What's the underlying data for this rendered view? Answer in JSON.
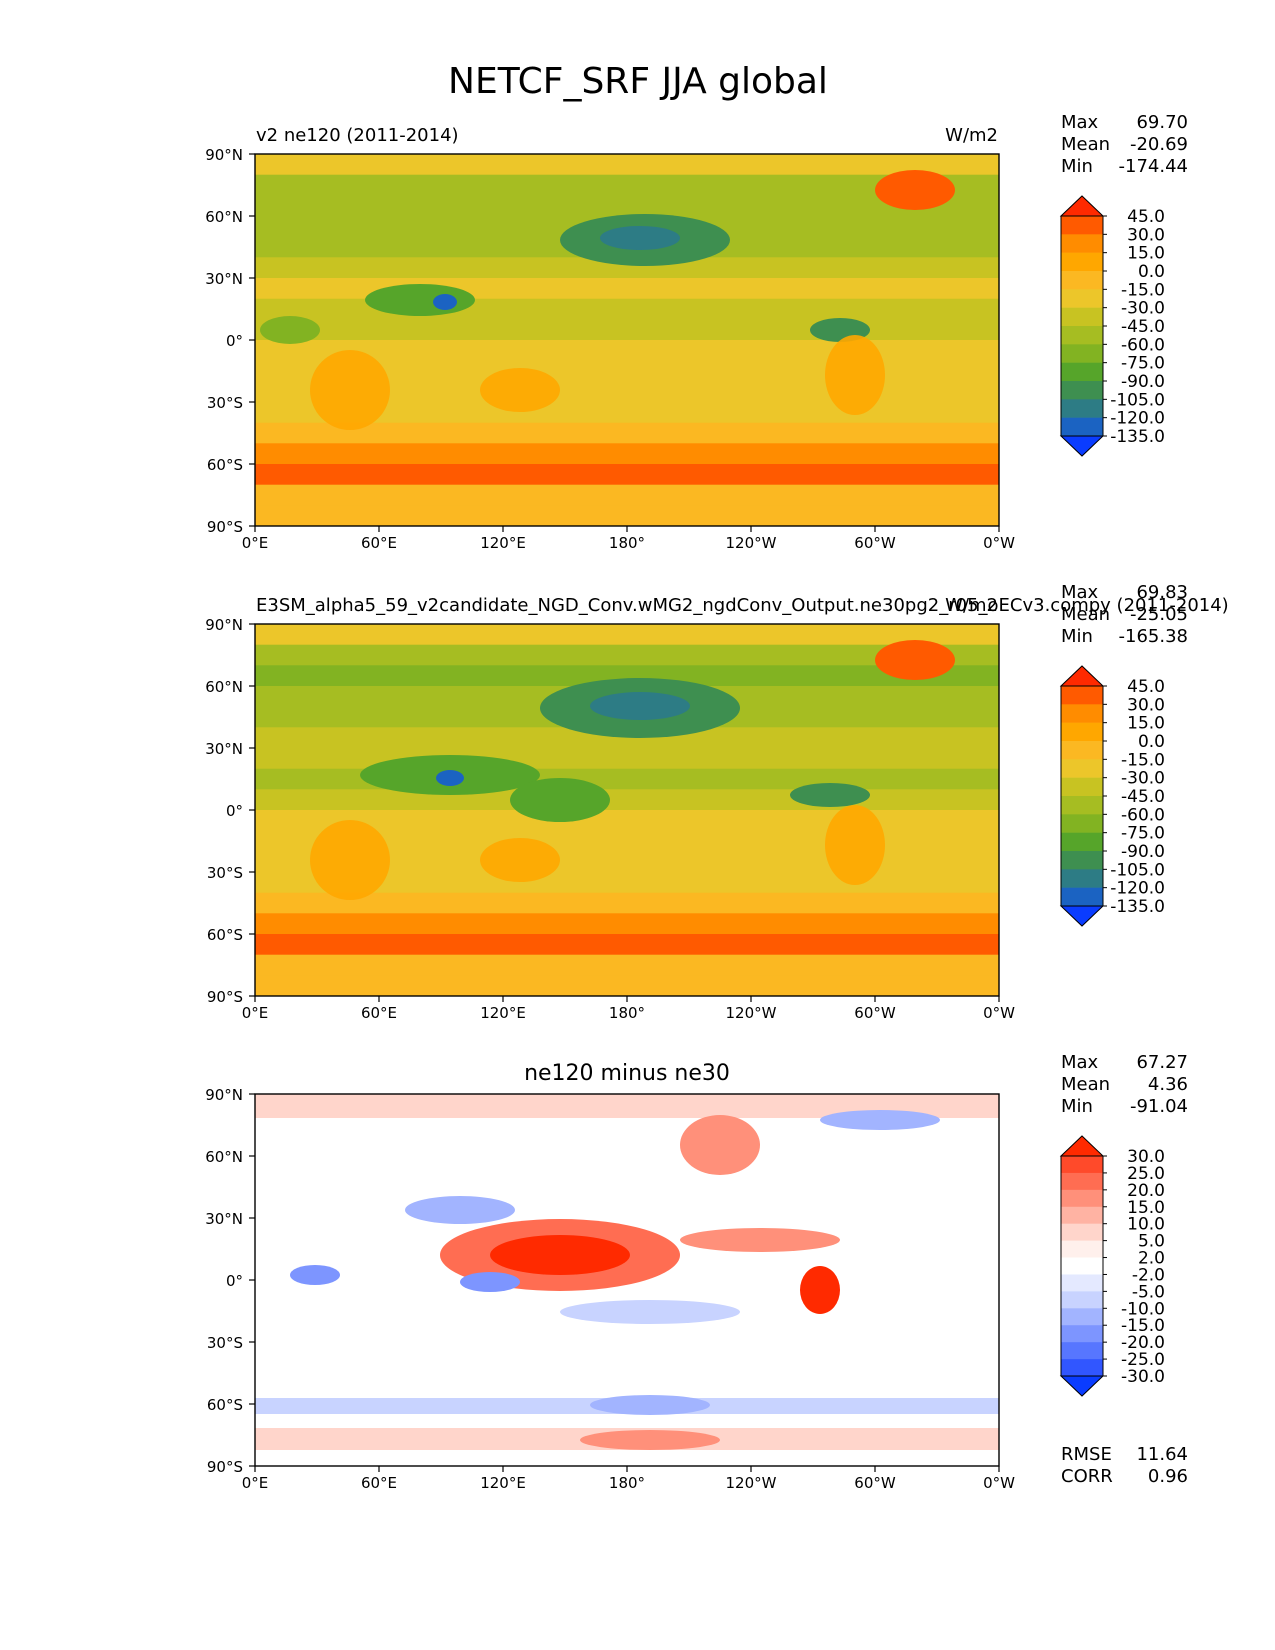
{
  "figure_title": "NETCF_SRF JJA global",
  "panels": [
    {
      "left_label": "v2 ne120 (2011-2014)",
      "right_label": "W/m2",
      "center_label": "",
      "stats": {
        "max_label": "Max",
        "max": "69.70",
        "mean_label": "Mean",
        "mean": "-20.69",
        "min_label": "Min",
        "min": "-174.44"
      },
      "colorbar_levels": [
        "45.0",
        "30.0",
        "15.0",
        "0.0",
        "-15.0",
        "-30.0",
        "-45.0",
        "-60.0",
        "-75.0",
        "-90.0",
        "-105.0",
        "-120.0",
        "-135.0"
      ],
      "colorbar_colors": [
        "#ff2a00",
        "#ff5a00",
        "#ff8c00",
        "#ffa700",
        "#fbb822",
        "#ecc62a",
        "#c8c322",
        "#a6bd22",
        "#82b322",
        "#56a52a",
        "#3e8f50",
        "#2d7c85",
        "#1b63c2",
        "#0a3cff"
      ]
    },
    {
      "left_label": "E3SM_alpha5_59_v2candidate_NGD_Conv.wMG2_ngdConv_Output.ne30pg2_r05_oECv3.compy (2011-2014)",
      "right_label": "W/m2",
      "center_label": "",
      "stats": {
        "max_label": "Max",
        "max": "69.83",
        "mean_label": "Mean",
        "mean": "-25.05",
        "min_label": "Min",
        "min": "-165.38"
      },
      "colorbar_levels": [
        "45.0",
        "30.0",
        "15.0",
        "0.0",
        "-15.0",
        "-30.0",
        "-45.0",
        "-60.0",
        "-75.0",
        "-90.0",
        "-105.0",
        "-120.0",
        "-135.0"
      ],
      "colorbar_colors": [
        "#ff2a00",
        "#ff5a00",
        "#ff8c00",
        "#ffa700",
        "#fbb822",
        "#ecc62a",
        "#c8c322",
        "#a6bd22",
        "#82b322",
        "#56a52a",
        "#3e8f50",
        "#2d7c85",
        "#1b63c2",
        "#0a3cff"
      ]
    },
    {
      "left_label": "",
      "right_label": "",
      "center_label": "ne120 minus ne30",
      "stats": {
        "max_label": "Max",
        "max": "67.27",
        "mean_label": "Mean",
        "mean": "4.36",
        "min_label": "Min",
        "min": "-91.04"
      },
      "colorbar_levels": [
        "30.0",
        "25.0",
        "20.0",
        "15.0",
        "10.0",
        "5.0",
        "2.0",
        "-2.0",
        "-5.0",
        "-10.0",
        "-15.0",
        "-20.0",
        "-25.0",
        "-30.0"
      ],
      "colorbar_colors": [
        "#ff2a00",
        "#ff4a2a",
        "#ff6d52",
        "#ff907a",
        "#ffb3a3",
        "#ffd5cb",
        "#fff0ec",
        "#ffffff",
        "#e4e9ff",
        "#c8d3ff",
        "#a2b4ff",
        "#7d95ff",
        "#5776ff",
        "#3156ff",
        "#0a3cff"
      ],
      "rmse_label": "RMSE",
      "rmse": "11.64",
      "corr_label": "CORR",
      "corr": "0.96"
    }
  ],
  "chart_data": [
    {
      "type": "heatmap",
      "title": "v2 ne120 (2011-2014)",
      "units": "W/m2",
      "xticks": [
        "0°E",
        "60°E",
        "120°E",
        "180°",
        "120°W",
        "60°W",
        "0°W"
      ],
      "yticks": [
        "90°N",
        "60°N",
        "30°N",
        "0°",
        "30°S",
        "60°S",
        "90°S"
      ],
      "xlim": [
        0,
        360
      ],
      "ylim": [
        -90,
        90
      ],
      "max": 69.7,
      "mean": -20.69,
      "min": -174.44,
      "zonal_profile": {
        "lat": [
          85,
          75,
          65,
          55,
          45,
          35,
          25,
          15,
          5,
          -5,
          -15,
          -25,
          -35,
          -45,
          -55,
          -65,
          -75,
          -85
        ],
        "values": [
          -28,
          -50,
          -58,
          -48,
          -48,
          -33,
          -30,
          -42,
          -35,
          -24,
          -25,
          -24,
          -18,
          -5,
          20,
          40,
          -8,
          -6
        ]
      }
    },
    {
      "type": "heatmap",
      "title": "E3SM_alpha5_59_v2candidate_NGD_Conv.wMG2_ngdConv_Output.ne30pg2_r05_oECv3.compy (2011-2014)",
      "units": "W/m2",
      "xticks": [
        "0°E",
        "60°E",
        "120°E",
        "180°",
        "120°W",
        "60°W",
        "0°W"
      ],
      "yticks": [
        "90°N",
        "60°N",
        "30°N",
        "0°",
        "30°S",
        "60°S",
        "90°S"
      ],
      "xlim": [
        0,
        360
      ],
      "ylim": [
        -90,
        90
      ],
      "max": 69.83,
      "mean": -25.05,
      "min": -165.38,
      "zonal_profile": {
        "lat": [
          85,
          75,
          65,
          55,
          45,
          35,
          25,
          15,
          5,
          -5,
          -15,
          -25,
          -35,
          -45,
          -55,
          -65,
          -75,
          -85
        ],
        "values": [
          -30,
          -55,
          -68,
          -60,
          -58,
          -38,
          -35,
          -50,
          -45,
          -30,
          -30,
          -26,
          -20,
          -6,
          18,
          38,
          -8,
          -6
        ]
      }
    },
    {
      "type": "heatmap",
      "title": "ne120 minus ne30",
      "xticks": [
        "0°E",
        "60°E",
        "120°E",
        "180°",
        "120°W",
        "60°W",
        "0°W"
      ],
      "yticks": [
        "90°N",
        "60°N",
        "30°N",
        "0°",
        "30°S",
        "60°S",
        "90°S"
      ],
      "xlim": [
        0,
        360
      ],
      "ylim": [
        -90,
        90
      ],
      "max": 67.27,
      "mean": 4.36,
      "min": -91.04,
      "rmse": 11.64,
      "corr": 0.96
    }
  ]
}
